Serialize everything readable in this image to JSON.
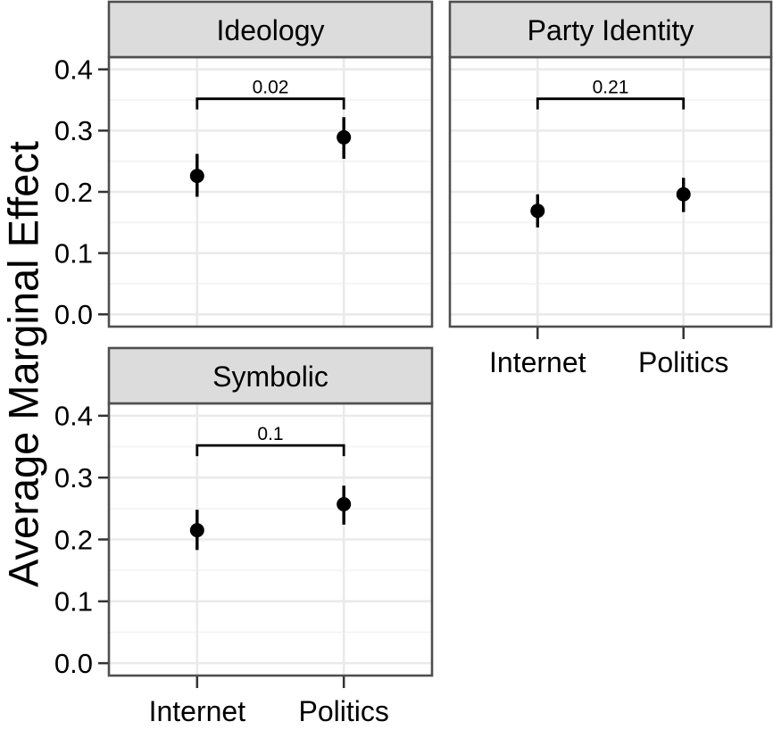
{
  "chart_data": {
    "type": "scatter",
    "subtype": "point-range-facets",
    "title": "",
    "xlabel": "",
    "ylabel": "Average Marginal Effect",
    "categories": [
      "Internet",
      "Politics"
    ],
    "ylim": [
      -0.02,
      0.42
    ],
    "yticks": [
      0.0,
      0.1,
      0.2,
      0.3,
      0.4
    ],
    "ytick_labels": [
      "0.0",
      "0.1",
      "0.2",
      "0.3",
      "0.4"
    ],
    "yticks_minor": [
      0.05,
      0.15,
      0.25,
      0.35
    ],
    "grid": "major and minor horizontal, major vertical at categories",
    "legend": "none",
    "facets": [
      {
        "title": "Ideology",
        "points": [
          {
            "category": "Internet",
            "estimate": 0.226,
            "ci_low": 0.192,
            "ci_high": 0.262
          },
          {
            "category": "Politics",
            "estimate": 0.289,
            "ci_low": 0.254,
            "ci_high": 0.322
          }
        ],
        "comparison": {
          "label": "0.02",
          "bracket_y": 0.352
        }
      },
      {
        "title": "Party Identity",
        "points": [
          {
            "category": "Internet",
            "estimate": 0.169,
            "ci_low": 0.142,
            "ci_high": 0.196
          },
          {
            "category": "Politics",
            "estimate": 0.196,
            "ci_low": 0.167,
            "ci_high": 0.223
          }
        ],
        "comparison": {
          "label": "0.21",
          "bracket_y": 0.352
        }
      },
      {
        "title": "Symbolic",
        "points": [
          {
            "category": "Internet",
            "estimate": 0.215,
            "ci_low": 0.183,
            "ci_high": 0.248
          },
          {
            "category": "Politics",
            "estimate": 0.257,
            "ci_low": 0.224,
            "ci_high": 0.287
          }
        ],
        "comparison": {
          "label": "0.1",
          "bracket_y": 0.352
        }
      }
    ]
  },
  "style": {
    "colors": {
      "background": "#ffffff",
      "strip_fill": "#dcdcdc",
      "border": "#4f4f4f",
      "grid_major": "#eaeaea",
      "grid_minor": "#f4f4f4",
      "tick_mark": "#333333",
      "text": "#000000",
      "point": "#000000"
    }
  }
}
